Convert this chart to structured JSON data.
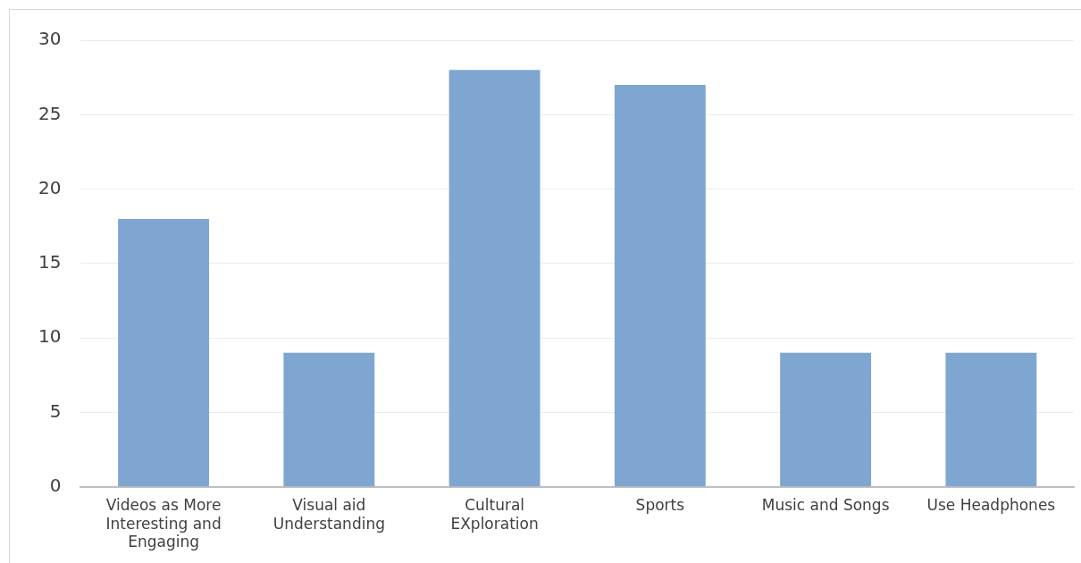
{
  "chart_data": {
    "type": "bar",
    "categories": [
      "Videos as More Interesting and Engaging",
      "Visual aid Understanding",
      "Cultural EXploration",
      "Sports",
      "Music and Songs",
      "Use Headphones"
    ],
    "values": [
      18,
      9,
      28,
      27,
      9,
      9
    ],
    "color": "#7fa6d0",
    "ylim": [
      0,
      30
    ],
    "yticks": [
      0,
      5,
      10,
      15,
      20,
      25,
      30
    ],
    "grid": "y"
  }
}
